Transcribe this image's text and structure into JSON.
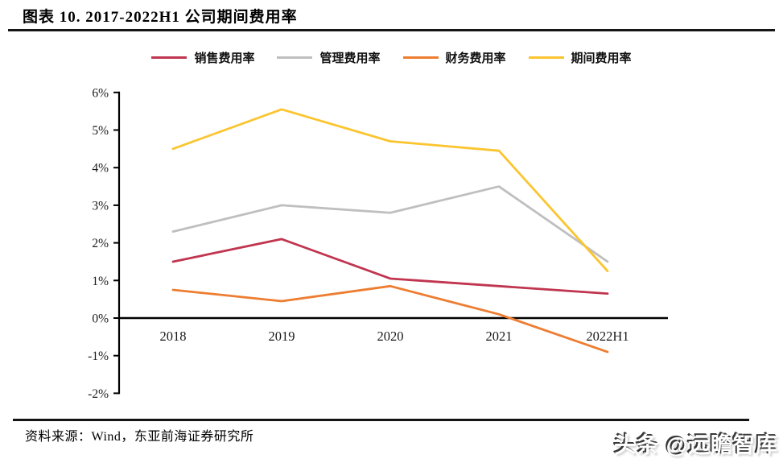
{
  "page": {
    "title": "图表 10. 2017-2022H1 公司期间费用率"
  },
  "footer": {
    "source": "资料来源：Wind，东亚前海证券研究所",
    "watermark": "头条 @远瞻智库"
  },
  "colors": {
    "sales": "#C0354F",
    "admin": "#BFBFBF",
    "finance": "#ED7D31",
    "total": "#FBC530",
    "axis": "#000000",
    "rule": "#161616"
  },
  "chart_data": {
    "type": "line",
    "title": "图表 10. 2017-2022H1 公司期间费用率",
    "categories": [
      "2018",
      "2019",
      "2020",
      "2021",
      "2022H1"
    ],
    "series": [
      {
        "name": "销售费用率",
        "color": "#C0354F",
        "values": [
          1.5,
          2.1,
          1.05,
          0.85,
          0.65
        ]
      },
      {
        "name": "管理费用率",
        "color": "#BFBFBF",
        "values": [
          2.3,
          3.0,
          2.8,
          3.5,
          1.5
        ]
      },
      {
        "name": "财务费用率",
        "color": "#ED7D31",
        "values": [
          0.75,
          0.45,
          0.85,
          0.1,
          -0.9
        ]
      },
      {
        "name": "期间费用率",
        "color": "#FBC530",
        "values": [
          4.5,
          5.55,
          4.7,
          4.45,
          1.25
        ]
      }
    ],
    "y_ticks": [
      "6%",
      "5%",
      "4%",
      "3%",
      "2%",
      "1%",
      "0%",
      "-1%",
      "-2%"
    ],
    "ylim": [
      -2,
      6
    ],
    "y_unit": "%",
    "grid": false,
    "legend_position": "top",
    "xlabel": "",
    "ylabel": ""
  }
}
